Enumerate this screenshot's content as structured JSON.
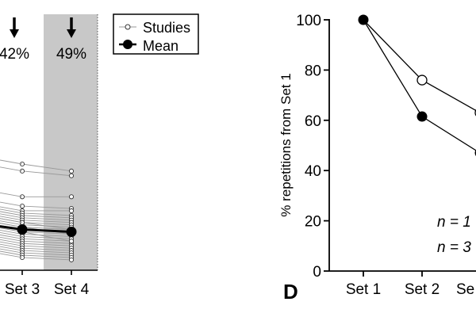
{
  "colors": {
    "shade": "#c8c8c8",
    "study_line": "#9a9a9a",
    "mean": "#000000",
    "open_marker_fill": "#ffffff"
  },
  "chart_data": [
    {
      "type": "line",
      "panel": "left",
      "categories": [
        "Set 3",
        "Set 4"
      ],
      "shaded_category": "Set 4",
      "annotations": [
        {
          "category": "Set 3",
          "text": "42%",
          "arrow": true
        },
        {
          "category": "Set 4",
          "text": "49%",
          "arrow": true
        }
      ],
      "legend": {
        "position": "top-right",
        "entries": [
          {
            "label": "Studies",
            "marker": "small-open-circle-line"
          },
          {
            "label": "Mean",
            "marker": "filled-circle-line"
          }
        ]
      },
      "series": [
        {
          "name": "Studies",
          "style": "study",
          "values": [
            [
              47,
              44
            ],
            [
              44,
              42
            ],
            [
              33,
              33
            ],
            [
              29,
              28
            ],
            [
              27,
              27
            ],
            [
              26,
              25
            ],
            [
              25,
              24
            ],
            [
              24,
              23
            ],
            [
              23,
              22
            ],
            [
              22,
              21
            ],
            [
              21,
              20
            ],
            [
              20,
              19
            ],
            [
              19,
              18
            ],
            [
              18,
              17
            ],
            [
              17,
              16
            ],
            [
              16,
              15
            ],
            [
              15,
              14
            ],
            [
              14,
              13
            ],
            [
              13,
              12
            ],
            [
              12,
              11
            ],
            [
              11,
              10
            ],
            [
              10,
              9
            ],
            [
              9,
              8
            ],
            [
              8,
              7
            ],
            [
              7,
              6
            ],
            [
              22,
              19
            ],
            [
              20,
              17
            ],
            [
              18,
              14
            ]
          ]
        },
        {
          "name": "Mean",
          "style": "mean",
          "values": [
            [
              19,
              18
            ]
          ]
        }
      ]
    },
    {
      "type": "line",
      "panel": "right",
      "panel_label": "D",
      "ylabel": "% repetitions from Set 1",
      "ylim": [
        0,
        100
      ],
      "yticks": [
        0,
        20,
        40,
        60,
        80,
        100
      ],
      "categories": [
        "Set 1",
        "Set 2",
        "Se"
      ],
      "annotations": [
        "n = 1",
        "n = 3"
      ],
      "series": [
        {
          "marker": "open",
          "values": [
            100,
            76,
            63
          ]
        },
        {
          "marker": "filled",
          "values": [
            100,
            61.5,
            47
          ]
        }
      ]
    }
  ]
}
